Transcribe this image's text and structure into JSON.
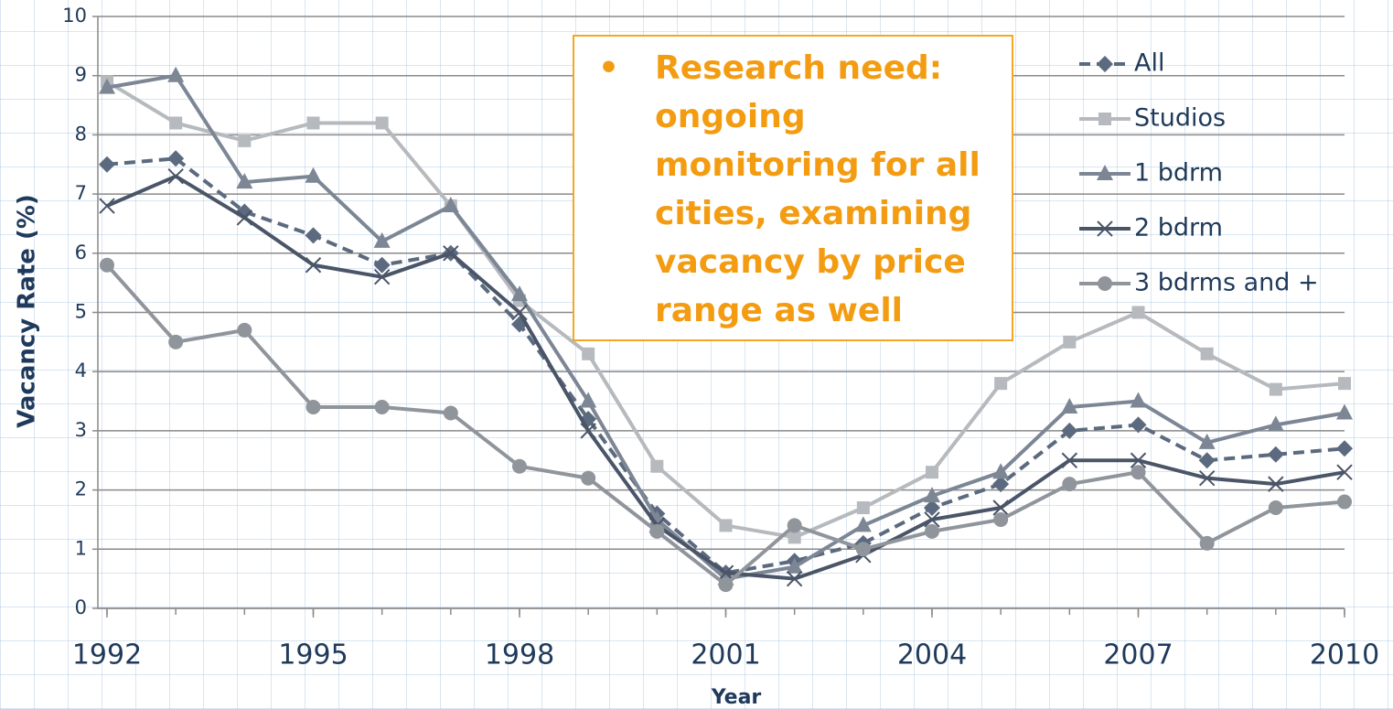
{
  "chart_data": {
    "type": "line",
    "x_label": "Year",
    "y_label": "Vacancy Rate (%)",
    "annotation": "Research need: ongoing monitoring for all cities, examining vacancy by price range as well",
    "x": [
      1992,
      1993,
      1994,
      1995,
      1996,
      1997,
      1998,
      1999,
      2000,
      2001,
      2002,
      2003,
      2004,
      2005,
      2006,
      2007,
      2008,
      2009,
      2010
    ],
    "xlim": [
      1992,
      2010
    ],
    "xticks": [
      1992,
      1995,
      1998,
      2001,
      2004,
      2007,
      2010
    ],
    "ylim": [
      0,
      10
    ],
    "yticks": [
      0,
      1,
      2,
      3,
      4,
      5,
      6,
      7,
      8,
      9,
      10
    ],
    "grid": true,
    "legend": "right",
    "series": [
      {
        "name": "All",
        "color": "#5b6a7e",
        "marker": "diamond",
        "dashed": true,
        "values": [
          7.5,
          7.6,
          6.7,
          6.3,
          5.8,
          6.0,
          4.8,
          3.2,
          1.6,
          0.6,
          0.8,
          1.1,
          1.7,
          2.1,
          3.0,
          3.1,
          2.5,
          2.6,
          2.7
        ]
      },
      {
        "name": "Studios",
        "color": "#b6b9bd",
        "marker": "square",
        "dashed": false,
        "values": [
          8.9,
          8.2,
          7.9,
          8.2,
          8.2,
          6.8,
          5.2,
          4.3,
          2.4,
          1.4,
          1.2,
          1.7,
          2.3,
          3.8,
          4.5,
          5.0,
          4.3,
          3.7,
          3.8
        ]
      },
      {
        "name": "1 bdrm",
        "color": "#7c8695",
        "marker": "triangle",
        "dashed": false,
        "values": [
          8.8,
          9.0,
          7.2,
          7.3,
          6.2,
          6.8,
          5.3,
          3.5,
          1.5,
          0.5,
          0.7,
          1.4,
          1.9,
          2.3,
          3.4,
          3.5,
          2.8,
          3.1,
          3.3
        ]
      },
      {
        "name": "2 bdrm",
        "color": "#4a5568",
        "marker": "x",
        "dashed": false,
        "values": [
          6.8,
          7.3,
          6.6,
          5.8,
          5.6,
          6.0,
          5.0,
          3.0,
          1.4,
          0.6,
          0.5,
          0.9,
          1.5,
          1.7,
          2.5,
          2.5,
          2.2,
          2.1,
          2.3
        ]
      },
      {
        "name": "3 bdrms and +",
        "color": "#90959c",
        "marker": "circle",
        "dashed": false,
        "values": [
          5.8,
          4.5,
          4.7,
          3.4,
          3.4,
          3.3,
          2.4,
          2.2,
          1.3,
          0.4,
          1.4,
          1.0,
          1.3,
          1.5,
          2.1,
          2.3,
          1.1,
          1.7,
          1.8
        ]
      }
    ]
  }
}
